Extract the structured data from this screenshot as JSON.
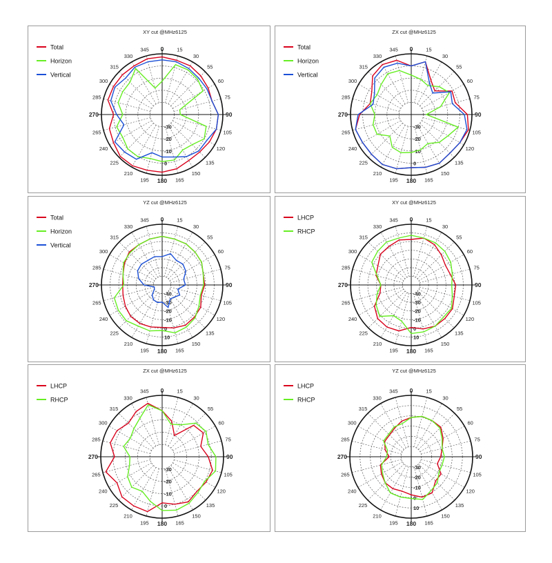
{
  "colors": {
    "red": "#d9001b",
    "green": "#66ee22",
    "blue": "#1a4fd6",
    "grid": "#555555"
  },
  "chart_data": [
    {
      "type": "polar-line",
      "title": "XY cut @MHz6125",
      "angle_ticks": [
        "0",
        "15",
        "30",
        "55",
        "60",
        "75",
        "90",
        "105",
        "120",
        "135",
        "150",
        "165",
        "180",
        "195",
        "210",
        "225",
        "240",
        "265",
        "270",
        "285",
        "300",
        "315",
        "330",
        "345"
      ],
      "radial_labels": [
        "-30",
        "-20",
        "-10",
        "0"
      ],
      "rlim": [
        -40,
        0
      ],
      "series": [
        {
          "name": "Total",
          "color_key": "red",
          "r": [
            -2,
            -3,
            -3,
            -4,
            -5,
            -6,
            -3,
            -3,
            -4,
            -5,
            -5,
            -3,
            -2,
            -2,
            -1,
            -1,
            -3,
            -4,
            -8,
            -3,
            -3,
            -3,
            -3,
            -2
          ]
        },
        {
          "name": "Horizon",
          "color_key": "green",
          "r": [
            -18,
            -6,
            -6,
            -7,
            -9,
            -28,
            -28,
            -10,
            -8,
            -12,
            -13,
            -9,
            -9,
            -10,
            -8,
            -8,
            -10,
            -9,
            -14,
            -10,
            -10,
            -10,
            -5,
            -22
          ]
        },
        {
          "name": "Vertical",
          "color_key": "blue",
          "r": [
            -4,
            -4,
            -5,
            -6,
            -6,
            -6,
            -3,
            -3,
            -6,
            -6,
            -8,
            -11,
            -12,
            -14,
            -6,
            -5,
            -4,
            -14,
            -10,
            -5,
            -4,
            -6,
            -4,
            -4
          ]
        }
      ]
    },
    {
      "type": "polar-line",
      "title": "ZX cut @MHz6125",
      "angle_ticks": [
        "0",
        "15",
        "30",
        "55",
        "60",
        "75",
        "90",
        "105",
        "120",
        "135",
        "150",
        "165",
        "180",
        "195",
        "210",
        "225",
        "240",
        "265",
        "270",
        "285",
        "300",
        "315",
        "330",
        "345"
      ],
      "radial_labels": [
        "-30",
        "-20",
        "-10",
        "0"
      ],
      "rlim": [
        -40,
        0
      ],
      "series": [
        {
          "name": "Total",
          "color_key": "red",
          "r": [
            -8,
            -4,
            -14,
            -18,
            -9,
            -10,
            -3,
            -1,
            -3,
            -4,
            -3,
            -4,
            -5,
            -3,
            -2,
            -3,
            -3,
            -2,
            -6,
            -12,
            -10,
            -4,
            -2,
            -3
          ]
        },
        {
          "name": "Horizon",
          "color_key": "green",
          "r": [
            -14,
            -16,
            -18,
            -14,
            -11,
            -20,
            -30,
            -8,
            -12,
            -14,
            -18,
            -16,
            -15,
            -14,
            -15,
            -20,
            -14,
            -14,
            -16,
            -12,
            -14,
            -12,
            -9,
            -10
          ]
        },
        {
          "name": "Vertical",
          "color_key": "blue",
          "r": [
            -8,
            -4,
            -16,
            -20,
            -10,
            -12,
            -5,
            -2,
            -3,
            -4,
            -3,
            -4,
            -5,
            -3,
            -2,
            -3,
            -3,
            -2,
            -5,
            -14,
            -12,
            -6,
            -4,
            -5
          ]
        }
      ]
    },
    {
      "type": "polar-line",
      "title": "YZ cut @MHz6125",
      "angle_ticks": [
        "0",
        "15",
        "30",
        "55",
        "60",
        "75",
        "90",
        "105",
        "120",
        "135",
        "150",
        "165",
        "180",
        "195",
        "210",
        "225",
        "240",
        "265",
        "270",
        "285",
        "300",
        "315",
        "330",
        "345"
      ],
      "radial_labels": [
        "-40",
        "-30",
        "-20",
        "-10",
        "0",
        "10"
      ],
      "rlim": [
        -50,
        10
      ],
      "series": [
        {
          "name": "Total",
          "color_key": "red",
          "r": [
            -2,
            -3,
            -3,
            -4,
            -5,
            -8,
            -8,
            -10,
            -6,
            -5,
            -4,
            -6,
            -8,
            -7,
            -6,
            -6,
            -8,
            -10,
            -11,
            -10,
            -7,
            -4,
            -4,
            -3
          ]
        },
        {
          "name": "Horizon",
          "color_key": "green",
          "r": [
            -2,
            -3,
            -3,
            -4,
            -5,
            -8,
            -9,
            -11,
            -8,
            -4,
            -2,
            -1,
            -5,
            -3,
            -3,
            0,
            0,
            -1,
            -12,
            -10,
            -6,
            -5,
            -4,
            -3
          ]
        },
        {
          "name": "Vertical",
          "color_key": "blue",
          "r": [
            -22,
            -18,
            -22,
            -21,
            -23,
            -28,
            -27,
            -34,
            -30,
            -33,
            -34,
            -27,
            -33,
            -32,
            -33,
            -36,
            -41,
            -42,
            -32,
            -26,
            -22,
            -21,
            -22,
            -21
          ]
        }
      ]
    },
    {
      "type": "polar-line",
      "title": "XY cut @MHz6125",
      "angle_ticks": [
        "0",
        "15",
        "30",
        "55",
        "60",
        "75",
        "90",
        "105",
        "120",
        "135",
        "150",
        "165",
        "180",
        "195",
        "210",
        "225",
        "240",
        "265",
        "270",
        "285",
        "300",
        "315",
        "330",
        "345"
      ],
      "radial_labels": [
        "-40",
        "-30",
        "-20",
        "-10",
        "0",
        "10"
      ],
      "rlim": [
        -50,
        10
      ],
      "series": [
        {
          "name": "LHCP",
          "color_key": "red",
          "r": [
            -5,
            -2,
            -4,
            -8,
            -11,
            -10,
            -6,
            -6,
            -3,
            -3,
            -3,
            -5,
            -8,
            -3,
            -2,
            -3,
            -8,
            -18,
            -20,
            -14,
            -12,
            -7,
            -6,
            -4
          ]
        },
        {
          "name": "RHCP",
          "color_key": "green",
          "r": [
            -1,
            -2,
            -2,
            -3,
            -5,
            -8,
            -10,
            -8,
            -4,
            -5,
            -3,
            -2,
            -2,
            -13,
            -15,
            -6,
            -10,
            -15,
            -20,
            -15,
            -5,
            -3,
            -1,
            -2
          ]
        }
      ]
    },
    {
      "type": "polar-line",
      "title": "ZX cut @MHz6125",
      "angle_ticks": [
        "0",
        "15",
        "30",
        "55",
        "60",
        "75",
        "90",
        "105",
        "120",
        "135",
        "150",
        "165",
        "180",
        "195",
        "210",
        "225",
        "240",
        "265",
        "270",
        "285",
        "300",
        "315",
        "330",
        "345"
      ],
      "radial_labels": [
        "-30",
        "-20",
        "-10",
        "0"
      ],
      "rlim": [
        -40,
        0
      ],
      "series": [
        {
          "name": "LHCP",
          "color_key": "red",
          "r": [
            -10,
            -16,
            -24,
            -11,
            -9,
            -14,
            -10,
            -6,
            -7,
            -8,
            -6,
            -8,
            -10,
            -3,
            -3,
            -3,
            -6,
            -2,
            -9,
            -5,
            -6,
            -9,
            -6,
            -4
          ]
        },
        {
          "name": "RHCP",
          "color_key": "green",
          "r": [
            -10,
            -18,
            -16,
            -9,
            -7,
            -9,
            -5,
            -4,
            -8,
            -7,
            -5,
            -4,
            -5,
            -10,
            -14,
            -12,
            -14,
            -18,
            -19,
            -14,
            -16,
            -14,
            -11,
            -5
          ]
        }
      ]
    },
    {
      "type": "polar-line",
      "title": "YZ cut @MHz6125",
      "angle_ticks": [
        "0",
        "15",
        "30",
        "55",
        "60",
        "75",
        "90",
        "105",
        "120",
        "135",
        "150",
        "165",
        "180",
        "195",
        "210",
        "225",
        "240",
        "265",
        "270",
        "285",
        "300",
        "315",
        "330",
        "345"
      ],
      "radial_labels": [
        "-30",
        "-20",
        "-10",
        "0",
        "10"
      ],
      "rlim": [
        -40,
        10
      ],
      "series": [
        {
          "name": "LHCP",
          "color_key": "red",
          "r": [
            -8,
            -6,
            -6,
            -6,
            -10,
            -14,
            -16,
            -18,
            -12,
            -12,
            -6,
            -6,
            -9,
            -11,
            -10,
            -10,
            -12,
            -14,
            -22,
            -18,
            -15,
            -15,
            -13,
            -10
          ]
        },
        {
          "name": "RHCP",
          "color_key": "green",
          "r": [
            -8,
            -6,
            -6,
            -7,
            -11,
            -14,
            -13,
            -14,
            -14,
            -10,
            -8,
            -4,
            -6,
            -6,
            -6,
            -10,
            -13,
            -15,
            -20,
            -20,
            -14,
            -14,
            -12,
            -12
          ]
        }
      ]
    }
  ]
}
